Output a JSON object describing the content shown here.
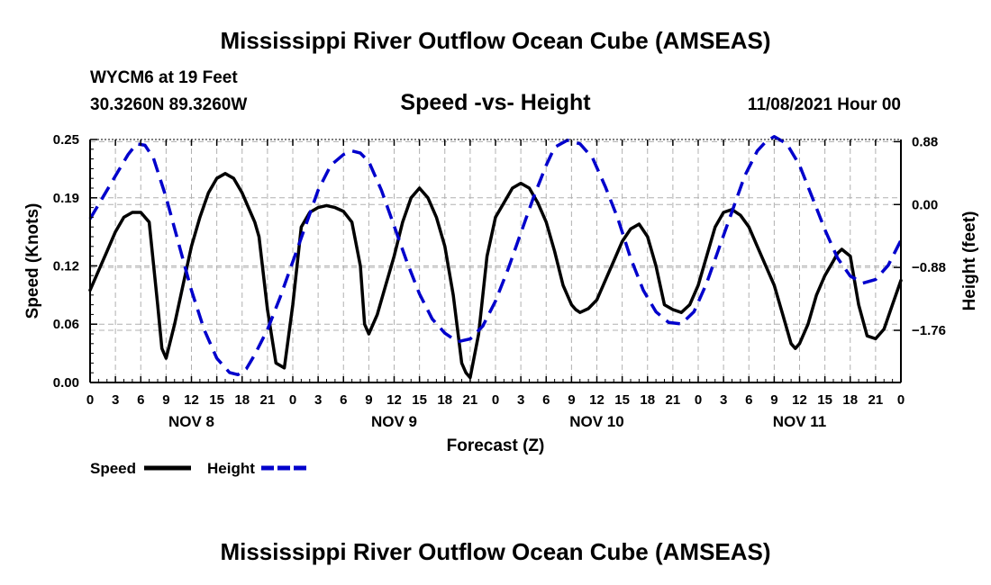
{
  "header": {
    "title": "Mississippi River Outflow Ocean Cube (AMSEAS)",
    "station": "WYCM6 at 19 Feet",
    "coords": "30.3260N  89.3260W",
    "subtitle": "Speed -vs- Height",
    "datetime": "11/08/2021 Hour 00"
  },
  "footer": {
    "title": "Mississippi River Outflow Ocean Cube (AMSEAS)"
  },
  "chart_data": {
    "type": "line",
    "title": "Speed -vs- Height",
    "xlabel": "Forecast (Z)",
    "ylabel": "Speed (Knots)",
    "y2label": "Height (feet)",
    "x_unit": "hours",
    "xlim": [
      0,
      96
    ],
    "ylim": [
      0.0,
      0.25
    ],
    "y2lim": [
      -2.49,
      0.91
    ],
    "grid": true,
    "x_tick_labels": [
      "0",
      "3",
      "6",
      "9",
      "12",
      "15",
      "18",
      "21",
      "0",
      "3",
      "6",
      "9",
      "12",
      "15",
      "18",
      "21",
      "0",
      "3",
      "6",
      "9",
      "12",
      "15",
      "18",
      "21",
      "0",
      "3",
      "6",
      "9",
      "12",
      "15",
      "18",
      "21",
      "0"
    ],
    "day_labels": [
      {
        "label": "NOV 8",
        "x": 12
      },
      {
        "label": "NOV 9",
        "x": 36
      },
      {
        "label": "NOV 10",
        "x": 60
      },
      {
        "label": "NOV 11",
        "x": 84
      }
    ],
    "y_ticks": [
      0.0,
      0.06,
      0.12,
      0.19,
      0.25
    ],
    "y_tick_labels": [
      "0.00",
      "0.06",
      "0.12",
      "0.19",
      "0.25"
    ],
    "y2_ticks": [
      0.88,
      0.0,
      -0.88,
      -1.76
    ],
    "y2_tick_labels": [
      "0.88",
      "0.00",
      "-0.88",
      "-1.76"
    ],
    "series": [
      {
        "name": "Speed",
        "axis": "left",
        "color": "#000000",
        "dash": "solid",
        "x": [
          0,
          1,
          2,
          3,
          4,
          5,
          6,
          7,
          8,
          8.5,
          9,
          10,
          11,
          12,
          13,
          14,
          15,
          16,
          17,
          18,
          19,
          19.5,
          20,
          21,
          22,
          23,
          24,
          25,
          26,
          27,
          28,
          29,
          30,
          31,
          32,
          32.5,
          33,
          34,
          35,
          36,
          37,
          38,
          39,
          40,
          41,
          42,
          43,
          44,
          44.5,
          45,
          46,
          47,
          48,
          49,
          50,
          51,
          52,
          53,
          54,
          55,
          56,
          57,
          57.5,
          58,
          59,
          60,
          61,
          62,
          63,
          64,
          65,
          66,
          67,
          68,
          69,
          70,
          70.5,
          71,
          72,
          73,
          74,
          75,
          76,
          77,
          78,
          79,
          80,
          81,
          82,
          83,
          83.5,
          84,
          85,
          86,
          87,
          88,
          88.5,
          89,
          90,
          91,
          92,
          93,
          94,
          95,
          96
        ],
        "values": [
          0.095,
          0.115,
          0.135,
          0.155,
          0.17,
          0.175,
          0.175,
          0.165,
          0.08,
          0.035,
          0.025,
          0.06,
          0.1,
          0.14,
          0.17,
          0.195,
          0.21,
          0.215,
          0.21,
          0.195,
          0.175,
          0.165,
          0.15,
          0.075,
          0.02,
          0.015,
          0.08,
          0.16,
          0.175,
          0.18,
          0.182,
          0.18,
          0.176,
          0.165,
          0.12,
          0.06,
          0.05,
          0.07,
          0.1,
          0.13,
          0.165,
          0.19,
          0.2,
          0.19,
          0.17,
          0.14,
          0.09,
          0.02,
          0.01,
          0.005,
          0.05,
          0.13,
          0.17,
          0.185,
          0.2,
          0.205,
          0.2,
          0.185,
          0.165,
          0.135,
          0.1,
          0.08,
          0.075,
          0.072,
          0.076,
          0.085,
          0.105,
          0.125,
          0.145,
          0.158,
          0.163,
          0.15,
          0.12,
          0.08,
          0.075,
          0.072,
          0.076,
          0.08,
          0.1,
          0.13,
          0.16,
          0.175,
          0.178,
          0.172,
          0.16,
          0.14,
          0.12,
          0.1,
          0.07,
          0.04,
          0.035,
          0.04,
          0.06,
          0.09,
          0.11,
          0.125,
          0.133,
          0.137,
          0.13,
          0.08,
          0.048,
          0.045,
          0.055,
          0.08,
          0.105
        ]
      },
      {
        "name": "Height",
        "axis": "right",
        "color": "#0000cc",
        "dash": "dashed",
        "x": [
          0,
          1.5,
          3,
          4.5,
          5.5,
          6.5,
          7.5,
          9,
          10.5,
          12,
          13.5,
          15,
          16.5,
          17.5,
          18.5,
          19.5,
          21,
          22.5,
          24,
          25.5,
          27,
          28.5,
          30,
          31,
          32,
          33,
          34.5,
          36,
          37.5,
          39,
          40.5,
          42,
          43.5,
          45,
          46.5,
          48,
          49.5,
          51,
          52.5,
          54,
          55,
          56.5,
          58,
          59.5,
          61,
          62.5,
          64,
          65.5,
          67,
          68.5,
          70,
          71.5,
          73,
          74.5,
          76,
          77.5,
          79,
          80,
          81,
          82.5,
          84,
          85.5,
          87,
          88.5,
          90,
          91.5,
          93,
          94.5,
          96
        ],
        "values": [
          -0.2,
          0.1,
          0.4,
          0.7,
          0.85,
          0.83,
          0.65,
          0.1,
          -0.55,
          -1.2,
          -1.75,
          -2.15,
          -2.35,
          -2.38,
          -2.3,
          -2.1,
          -1.75,
          -1.3,
          -0.8,
          -0.3,
          0.2,
          0.55,
          0.7,
          0.75,
          0.72,
          0.6,
          0.2,
          -0.3,
          -0.8,
          -1.25,
          -1.6,
          -1.8,
          -1.92,
          -1.88,
          -1.7,
          -1.35,
          -0.9,
          -0.4,
          0.1,
          0.55,
          0.8,
          0.9,
          0.85,
          0.65,
          0.25,
          -0.2,
          -0.75,
          -1.2,
          -1.5,
          -1.65,
          -1.67,
          -1.5,
          -1.1,
          -0.6,
          -0.1,
          0.4,
          0.75,
          0.88,
          0.95,
          0.85,
          0.55,
          0.1,
          -0.35,
          -0.75,
          -1.0,
          -1.1,
          -1.05,
          -0.85,
          -0.5
        ]
      }
    ],
    "legend": {
      "placement": "bottom-left",
      "items": [
        {
          "label": "Speed",
          "color": "#000000",
          "dash": "solid"
        },
        {
          "label": "Height",
          "color": "#0000cc",
          "dash": "dashed"
        }
      ]
    }
  }
}
